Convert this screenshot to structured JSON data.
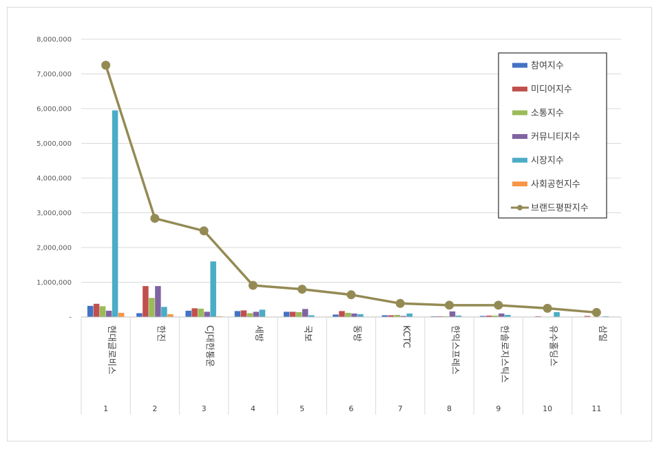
{
  "chart_data": {
    "type": "bar",
    "categories": [
      "현대글로비스",
      "한진",
      "CJ대한통운",
      "세방",
      "국보",
      "동방",
      "KCTC",
      "한익스프레스",
      "한솔로지스틱스",
      "유수홀딩스",
      "삼일"
    ],
    "ranks": [
      "1",
      "2",
      "3",
      "4",
      "5",
      "6",
      "7",
      "8",
      "9",
      "10",
      "11"
    ],
    "y_ticks": [
      "-",
      "1,000,000",
      "2,000,000",
      "3,000,000",
      "4,000,000",
      "5,000,000",
      "6,000,000",
      "7,000,000",
      "8,000,000"
    ],
    "ylim": [
      0,
      8000000
    ],
    "grid": true,
    "legend_position": "top-right",
    "series": [
      {
        "name": "참여지수",
        "type": "bar",
        "color": "#4472C4",
        "values": [
          320000,
          110000,
          180000,
          170000,
          150000,
          70000,
          50000,
          20000,
          30000,
          10000,
          0
        ]
      },
      {
        "name": "미디어지수",
        "type": "bar",
        "color": "#C0504D",
        "values": [
          380000,
          890000,
          250000,
          190000,
          150000,
          170000,
          50000,
          20000,
          40000,
          20000,
          30000
        ]
      },
      {
        "name": "소통지수",
        "type": "bar",
        "color": "#9BBB59",
        "values": [
          310000,
          550000,
          240000,
          110000,
          140000,
          120000,
          60000,
          20000,
          40000,
          10000,
          0
        ]
      },
      {
        "name": "커뮤니티지수",
        "type": "bar",
        "color": "#8064A2",
        "values": [
          180000,
          890000,
          150000,
          150000,
          230000,
          100000,
          30000,
          160000,
          100000,
          10000,
          0
        ]
      },
      {
        "name": "시장지수",
        "type": "bar",
        "color": "#4BACC6",
        "values": [
          5950000,
          290000,
          1600000,
          210000,
          50000,
          80000,
          100000,
          40000,
          60000,
          140000,
          20000
        ]
      },
      {
        "name": "사회공헌지수",
        "type": "bar",
        "color": "#F79646",
        "values": [
          120000,
          80000,
          20000,
          0,
          0,
          0,
          0,
          0,
          0,
          0,
          0
        ]
      },
      {
        "name": "브랜드평판지수",
        "type": "line",
        "color": "#948A54",
        "values": [
          7250000,
          2840000,
          2480000,
          910000,
          800000,
          640000,
          390000,
          340000,
          340000,
          250000,
          130000
        ]
      }
    ]
  }
}
